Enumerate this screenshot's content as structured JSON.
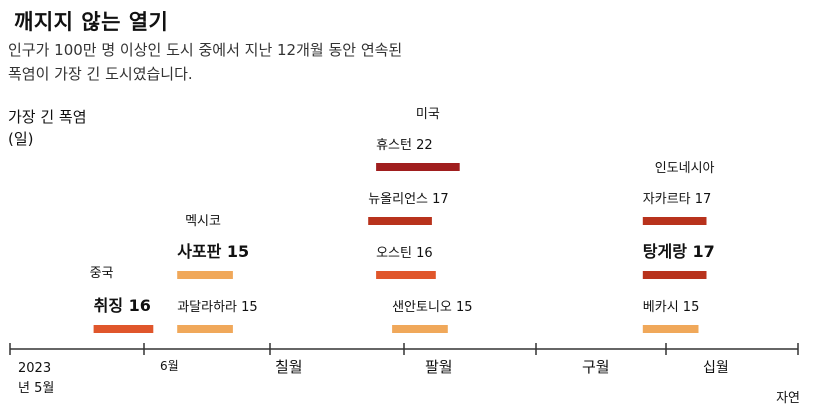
{
  "title": "깨지지 않는 열기",
  "subtitle": "인구가 100만 명 이상인 도시 중에서 지난 12개월 동안 연속된 폭염이 가장 긴 도시였습니다.",
  "source": "자연",
  "chart_data": {
    "type": "bar",
    "orientation": "horizontal-timeline",
    "ylabel": "가장 긴 폭염(일)",
    "x_ticks": [
      {
        "line1": "2023",
        "line2": "년 5월"
      },
      {
        "line1": "6월",
        "line2": ""
      },
      {
        "line1": "칠월",
        "line2": ""
      },
      {
        "line1": "팔월",
        "line2": ""
      },
      {
        "line1": "구월",
        "line2": ""
      },
      {
        "line1": "십월",
        "line2": ""
      }
    ],
    "x_range": [
      "2023-05-01",
      "2023-11-15"
    ],
    "countries": [
      {
        "name": "중국",
        "near_date": "2023-05-21"
      },
      {
        "name": "멕시코",
        "near_date": "2023-06-14"
      },
      {
        "name": "미국",
        "near_date": "2023-08-11"
      },
      {
        "name": "인도네시아",
        "near_date": "2023-10-10"
      }
    ],
    "series": [
      {
        "city": "취징",
        "days": 16,
        "label": "취징 16",
        "start": "2023-05-22",
        "end": "2023-06-06",
        "color": "#e0562b",
        "emph": true
      },
      {
        "city": "사포판",
        "days": 15,
        "label": "사포판 15",
        "start": "2023-06-12",
        "end": "2023-06-26",
        "color": "#f0a85a",
        "emph": true
      },
      {
        "city": "과달라하라",
        "days": 15,
        "label": "과달라하라 15",
        "start": "2023-06-12",
        "end": "2023-06-26",
        "color": "#f0a85a",
        "emph": false
      },
      {
        "city": "휴스턴",
        "days": 22,
        "label": "휴스턴 22",
        "start": "2023-08-01",
        "end": "2023-08-22",
        "color": "#a01e1e",
        "emph": false
      },
      {
        "city": "뉴올리언스",
        "days": 17,
        "label": "뉴올리언스 17",
        "start": "2023-07-30",
        "end": "2023-08-15",
        "color": "#b8321c",
        "emph": false
      },
      {
        "city": "오스틴",
        "days": 16,
        "label": "오스틴 16",
        "start": "2023-08-01",
        "end": "2023-08-16",
        "color": "#e0562b",
        "emph": false
      },
      {
        "city": "샌안토니오",
        "days": 15,
        "label": "샌안토니오 15",
        "start": "2023-08-05",
        "end": "2023-08-19",
        "color": "#f0a85a",
        "emph": false
      },
      {
        "city": "자카르타",
        "days": 17,
        "label": "자카르타 17",
        "start": "2023-10-07",
        "end": "2023-10-23",
        "color": "#b8321c",
        "emph": false
      },
      {
        "city": "탕게랑",
        "days": 17,
        "label": "탕게랑 17",
        "start": "2023-10-07",
        "end": "2023-10-23",
        "color": "#b8321c",
        "emph": true
      },
      {
        "city": "베카시",
        "days": 15,
        "label": "베카시 15",
        "start": "2023-10-07",
        "end": "2023-10-21",
        "color": "#f0a85a",
        "emph": false
      }
    ]
  }
}
